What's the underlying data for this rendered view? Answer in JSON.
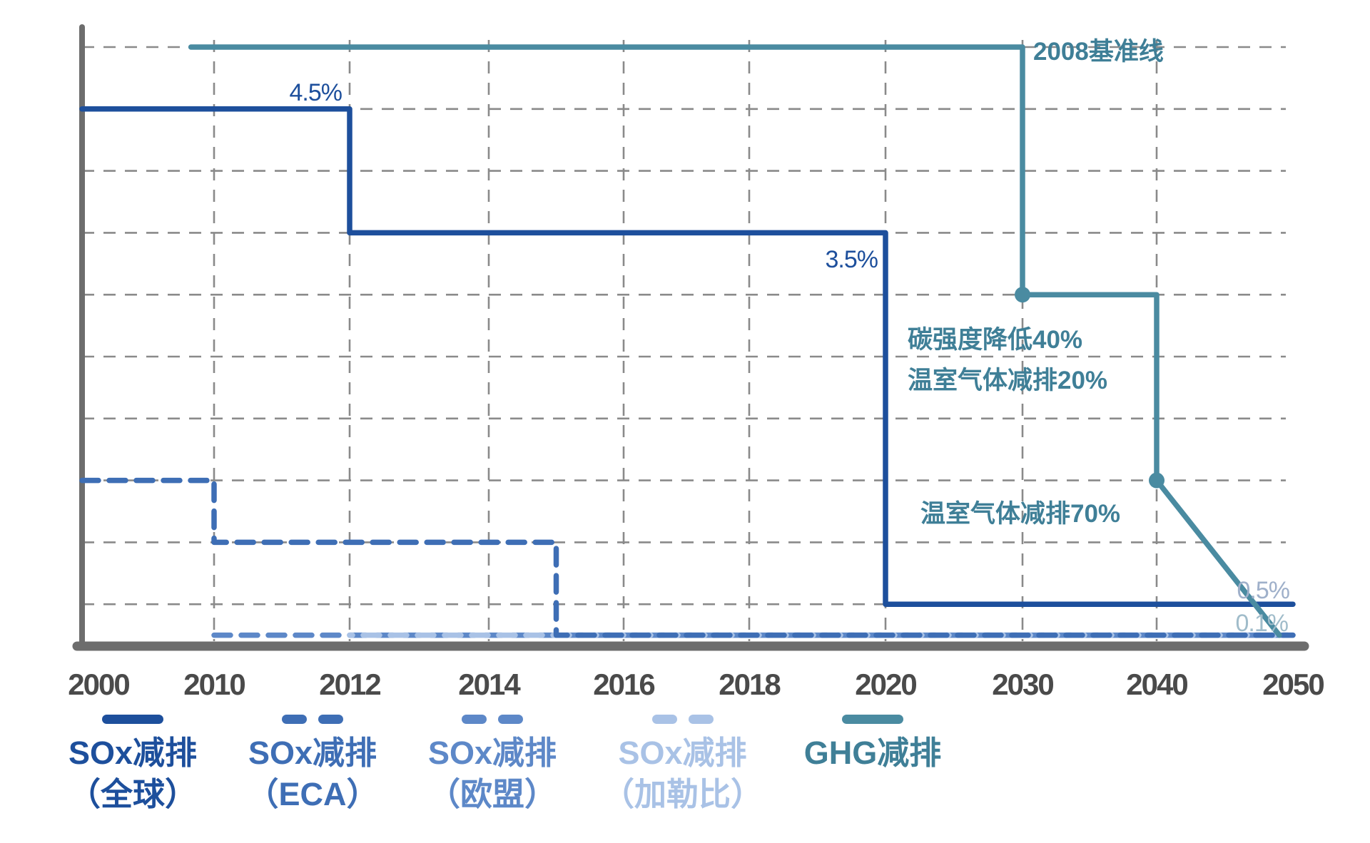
{
  "chart_data": {
    "type": "line",
    "title": "",
    "x_tick_labels": [
      "2000",
      "2010",
      "2012",
      "2014",
      "2016",
      "2018",
      "2020",
      "2030",
      "2040",
      "2050"
    ],
    "grid": "dashed-horizontal-and-vertical",
    "legend_position": "bottom",
    "series": [
      {
        "id": "sox-eu",
        "name": "SOx减排（欧盟）",
        "style": "dashed",
        "color": "#5d88c8",
        "dash_offset": 0,
        "points": [
          {
            "year": 2010,
            "row": 9.5
          },
          {
            "year": 2050,
            "row": 9.5
          }
        ]
      },
      {
        "id": "sox-caribbean",
        "name": "SOx减排（加勒比）",
        "style": "dashed",
        "color": "#a9c2e6",
        "dash_offset": 19,
        "points": [
          {
            "year": 2012,
            "row": 9.5
          },
          {
            "year": 2050,
            "row": 9.5
          }
        ]
      },
      {
        "id": "sox-eca",
        "name": "SOx减排（ECA）",
        "style": "dashed",
        "color": "#3e6eb5",
        "from_axis": true,
        "points": [
          {
            "year": 2000,
            "row": 7
          },
          {
            "year": 2010,
            "row": 7
          },
          {
            "year": 2010,
            "row": 8
          },
          {
            "year": 2015,
            "row": 8
          },
          {
            "year": 2015,
            "row": 9.5
          },
          {
            "year": 2050,
            "row": 9.5
          }
        ]
      },
      {
        "id": "sox-global",
        "name": "SOx减排（全球）",
        "style": "solid",
        "color": "#1d4f9c",
        "from_axis": true,
        "points": [
          {
            "year": 2000,
            "row": 1
          },
          {
            "year": 2012,
            "row": 1
          },
          {
            "year": 2012,
            "row": 3
          },
          {
            "year": 2020,
            "row": 3
          },
          {
            "year": 2020,
            "row": 9
          },
          {
            "year": 2050,
            "row": 9
          }
        ]
      },
      {
        "id": "ghg",
        "name": "GHG减排",
        "style": "solid",
        "color": "#4a8ba1",
        "points": [
          {
            "year": 2008,
            "row": 0
          },
          {
            "year": 2030,
            "row": 0
          },
          {
            "year": 2030,
            "row": 4
          },
          {
            "year": 2040,
            "row": 4
          },
          {
            "year": 2040,
            "row": 7
          },
          {
            "year": 2049,
            "row": 9.5
          }
        ],
        "dots": [
          {
            "year": 2030,
            "row": 4
          },
          {
            "year": 2040,
            "row": 7
          }
        ]
      }
    ],
    "annotations": {
      "baseline_2008": "2008基准线",
      "sox_45": "4.5%",
      "sox_35": "3.5%",
      "ghg_carbon_intensity_40": "碳强度降低40%",
      "ghg_reduction_20": "温室气体减排20%",
      "ghg_reduction_70": "温室气体减排70%",
      "sox_05": "0.5%",
      "sox_01": "0.1%"
    }
  },
  "legend": {
    "items": [
      {
        "id": "sox-global",
        "line1": "SOx减排",
        "line2": "（全球）",
        "color": "#1d4f9c",
        "swatch": "solid"
      },
      {
        "id": "sox-eca",
        "line1": "SOx减排",
        "line2": "（ECA）",
        "color": "#3e6eb5",
        "swatch": "dashed"
      },
      {
        "id": "sox-eu",
        "line1": "SOx减排",
        "line2": "（欧盟）",
        "color": "#5d88c8",
        "swatch": "dashed"
      },
      {
        "id": "sox-caribbean",
        "line1": "SOx减排",
        "line2": "（加勒比）",
        "color": "#a9c2e6",
        "swatch": "dashed"
      },
      {
        "id": "ghg",
        "line1": "GHG减排",
        "line2": "",
        "color": "#3f7f97",
        "swatch": "solid",
        "swatch_color": "#4a8ba1"
      }
    ]
  }
}
